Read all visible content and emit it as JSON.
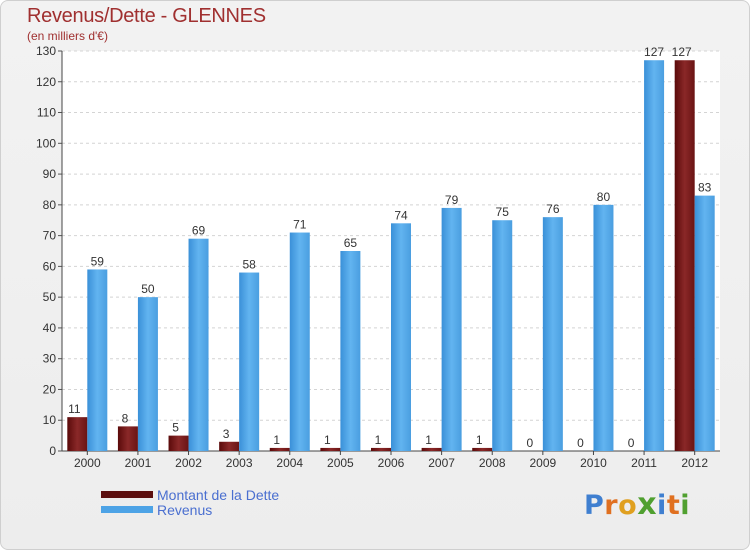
{
  "header": {
    "title": "Revenus/Dette - GLENNES",
    "subtitle": "(en milliers d'€)"
  },
  "chart_data": {
    "type": "bar",
    "categories": [
      "2000",
      "2001",
      "2002",
      "2003",
      "2004",
      "2005",
      "2006",
      "2007",
      "2008",
      "2009",
      "2010",
      "2011",
      "2012"
    ],
    "series": [
      {
        "name": "Montant de la Dette",
        "values": [
          11,
          8,
          5,
          3,
          1,
          1,
          1,
          1,
          1,
          0,
          0,
          0,
          127
        ],
        "color": "#7a1a1a"
      },
      {
        "name": "Revenus",
        "values": [
          59,
          50,
          69,
          58,
          71,
          65,
          74,
          79,
          75,
          76,
          80,
          127,
          83
        ],
        "color": "#4da3e6"
      }
    ],
    "title": "Revenus/Dette - GLENNES",
    "ylim": [
      0,
      130
    ],
    "yticks": [
      0,
      10,
      20,
      30,
      40,
      50,
      60,
      70,
      80,
      90,
      100,
      110,
      120,
      130
    ],
    "grid": true,
    "legend_position": "bottom-left"
  },
  "legend": {
    "items": [
      {
        "label": "Montant de la Dette",
        "color": "#5c0f0f"
      },
      {
        "label": "Revenus",
        "color": "#4da3e6"
      }
    ]
  },
  "logo": {
    "letters": [
      "P",
      "r",
      "o",
      "x",
      "i",
      "t",
      "i"
    ],
    "colors": [
      "#3f7fd0",
      "#e07020",
      "#e0a020",
      "#50a030",
      "#3f7fd0",
      "#e07020",
      "#50a030"
    ]
  }
}
